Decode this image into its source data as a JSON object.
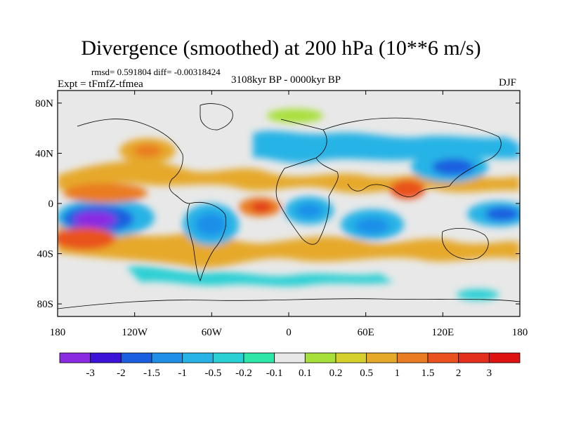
{
  "header": {
    "title": "Divergence (smoothed) at 200 hPa (10**6 m/s)",
    "stats": "rmsd= 0.591804 diff= -0.00318424",
    "period": "3108kyr BP - 0000kyr BP",
    "experiment": "Expt = tFmfZ-tfmea",
    "season": "DJF"
  },
  "chart_data": {
    "type": "heatmap",
    "title": "Divergence (smoothed) at 200 hPa (10**6 m/s)",
    "xlabel": "",
    "ylabel": "",
    "xlim": [
      -180,
      180
    ],
    "ylim": [
      -90,
      90
    ],
    "x_ticks": [
      {
        "value": -180,
        "label": "180"
      },
      {
        "value": -120,
        "label": "120W"
      },
      {
        "value": -60,
        "label": "60W"
      },
      {
        "value": 0,
        "label": "0"
      },
      {
        "value": 60,
        "label": "60E"
      },
      {
        "value": 120,
        "label": "120E"
      },
      {
        "value": 180,
        "label": "180"
      }
    ],
    "y_ticks": [
      {
        "value": 80,
        "label": "80N"
      },
      {
        "value": 40,
        "label": "40N"
      },
      {
        "value": 0,
        "label": "0"
      },
      {
        "value": -40,
        "label": "40S"
      },
      {
        "value": -80,
        "label": "80S"
      }
    ],
    "colorbar": {
      "labels": [
        "-3",
        "-2",
        "-1.5",
        "-1",
        "-0.5",
        "-0.2",
        "-0.1",
        "0.1",
        "0.2",
        "0.5",
        "1",
        "1.5",
        "2",
        "3"
      ],
      "colors": [
        "#8a2be2",
        "#3b14d8",
        "#1a5fe0",
        "#1f8fe8",
        "#27b3e6",
        "#2ad0d4",
        "#2de6a8",
        "#e8e8e8",
        "#a8e03a",
        "#d6d02e",
        "#e6a92a",
        "#ea7c24",
        "#e9521e",
        "#e2301c",
        "#df1212"
      ]
    },
    "features": [
      {
        "name": "central-pacific-convergence",
        "lon": -145,
        "lat": -3,
        "value": -3
      },
      {
        "name": "east-pacific-divergence",
        "lon": -120,
        "lat": 10,
        "value": 1.5
      },
      {
        "name": "south-america-convergence",
        "lon": -50,
        "lat": -10,
        "value": -1
      },
      {
        "name": "tropical-atlantic-divergence",
        "lon": -20,
        "lat": 0,
        "value": 1.5
      },
      {
        "name": "east-africa-convergence",
        "lon": 20,
        "lat": 0,
        "value": -1
      },
      {
        "name": "indian-ocean-convergence",
        "lon": 75,
        "lat": -10,
        "value": -1
      },
      {
        "name": "east-asia-convergence",
        "lon": 125,
        "lat": 25,
        "value": -1.5
      },
      {
        "name": "maritime-continent-divergence",
        "lon": 100,
        "lat": 5,
        "value": 1.5
      },
      {
        "name": "western-pacific-convergence",
        "lon": 170,
        "lat": 0,
        "value": -1.5
      }
    ],
    "colors": {
      "missing": "#e8e8e8",
      "coast": "#000000"
    }
  }
}
